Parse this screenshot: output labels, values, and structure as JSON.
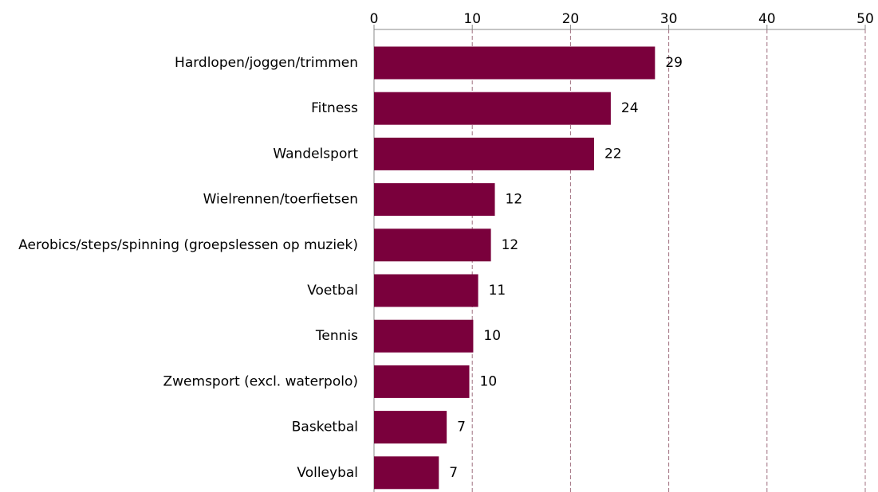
{
  "chart_data": {
    "type": "barh",
    "categories": [
      "Hardlopen/joggen/trimmen",
      "Fitness",
      "Wandelsport",
      "Wielrennen/toerfietsen",
      "Aerobics/steps/spinning (groepslessen op muziek)",
      "Voetbal",
      "Tennis",
      "Zwemsport (excl. waterpolo)",
      "Basketbal",
      "Volleybal"
    ],
    "values": [
      28.6,
      24.1,
      22.4,
      12.3,
      11.9,
      10.6,
      10.1,
      9.7,
      7.4,
      6.6
    ],
    "value_labels": [
      "29",
      "24",
      "22",
      "12",
      "12",
      "11",
      "10",
      "10",
      "7",
      "7"
    ],
    "color": "#7a003c",
    "xlim": [
      0,
      50
    ],
    "xticks": [
      0,
      10,
      20,
      30,
      40,
      50
    ],
    "grid": true
  }
}
